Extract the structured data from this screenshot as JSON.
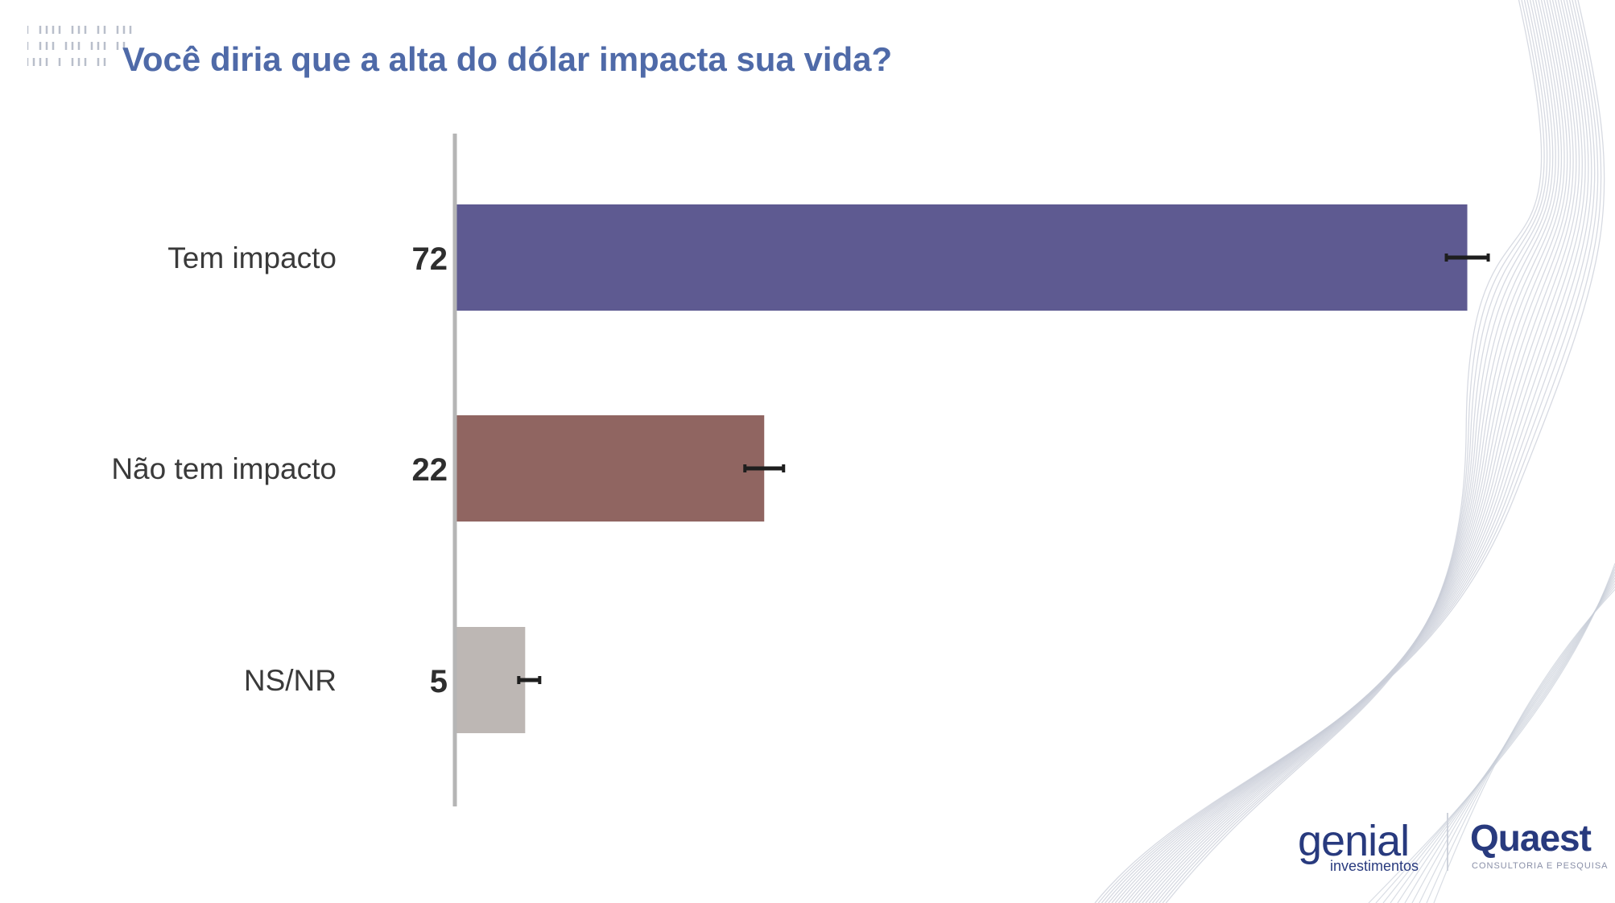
{
  "slide": {
    "title": "Você diria que a alta do dólar impacta sua vida?"
  },
  "chart_data": {
    "type": "bar",
    "orientation": "horizontal",
    "title": "Você diria que a alta do dólar impacta sua vida?",
    "categories": [
      "Tem impacto",
      "Não tem impacto",
      "NS/NR"
    ],
    "values": [
      72,
      22,
      5
    ],
    "value_labels": [
      "72",
      "22",
      "5"
    ],
    "bar_colors": [
      "#5e5a91",
      "#906561",
      "#bdb7b4"
    ],
    "error_bars": true,
    "xlim": [
      0,
      75
    ],
    "grid": false,
    "legend": "none"
  },
  "logos": {
    "genial": {
      "name": "genial",
      "tagline": "investimentos",
      "color": "#283a7e"
    },
    "quaest": {
      "name": "Quaest",
      "tagline": "CONSULTORIA E PESQUISA",
      "color": "#283a7e"
    }
  },
  "decoration": {
    "wave_color": "#c9ced8",
    "dash_pattern_color": "#b9bfcb"
  }
}
